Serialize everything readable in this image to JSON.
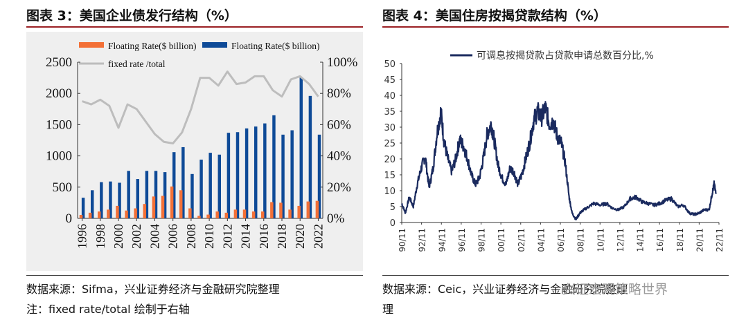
{
  "left": {
    "title": "图表 3：美国企业债发行结构（%）",
    "source_line1": "数据来源：Sifma，兴业证券经济与金融研究院整理",
    "source_line2": "注：fixed rate/total 绘制于右轴"
  },
  "right": {
    "title": "图表 4：美国住房按揭贷款结构（%）",
    "source_line1": "数据来源：Ceic，兴业证券经济与金融研究院整理",
    "source_line2": "理"
  },
  "watermark": {
    "text": "兴证宏观策略世界"
  },
  "colors": {
    "orange": "#f37037",
    "blue": "#0e4a97",
    "gray": "#bdbdbd",
    "navy": "#1a2a5e",
    "accent": "#9a1e23"
  },
  "chart_data": [
    {
      "type": "bar",
      "categories": [
        "1996",
        "1997",
        "1998",
        "1999",
        "2000",
        "2001",
        "2002",
        "2003",
        "2004",
        "2005",
        "2006",
        "2007",
        "2008",
        "2009",
        "2010",
        "2011",
        "2012",
        "2013",
        "2014",
        "2015",
        "2016",
        "2017",
        "2018",
        "2019",
        "2020",
        "2021",
        "2022"
      ],
      "x_tick_labels": [
        "1996",
        "1998",
        "2000",
        "2002",
        "2004",
        "2006",
        "2008",
        "2010",
        "2012",
        "2014",
        "2016",
        "2018",
        "2020",
        "2022"
      ],
      "series": [
        {
          "name": "Floating Rate($ billion)",
          "kind": "bar",
          "color": "#f37037",
          "axis": "left",
          "values": [
            55,
            90,
            110,
            140,
            200,
            125,
            160,
            230,
            350,
            360,
            510,
            450,
            160,
            40,
            60,
            110,
            90,
            140,
            140,
            110,
            110,
            260,
            250,
            140,
            200,
            270,
            280
          ]
        },
        {
          "name": "Floating Rate($ billion)",
          "kind": "bar",
          "color": "#0e4a97",
          "axis": "left",
          "values": [
            330,
            450,
            580,
            590,
            570,
            760,
            630,
            760,
            760,
            740,
            1060,
            1140,
            710,
            940,
            1050,
            1020,
            1370,
            1380,
            1440,
            1470,
            1520,
            1650,
            1340,
            1410,
            2260,
            1960,
            1340
          ]
        },
        {
          "name": "fixed rate /total",
          "kind": "line",
          "color": "#bdbdbd",
          "axis": "right",
          "values": [
            75,
            73,
            76,
            72,
            58,
            73,
            70,
            62,
            54,
            49,
            48,
            55,
            70,
            90,
            90,
            85,
            94,
            86,
            87,
            91,
            91,
            82,
            78,
            89,
            91,
            86,
            78
          ]
        }
      ],
      "y_left": {
        "min": 0,
        "max": 2500,
        "ticks": [
          "0",
          "500",
          "1000",
          "1500",
          "2000",
          "2500"
        ]
      },
      "y_right": {
        "min": 0,
        "max": 100,
        "ticks": [
          "0%",
          "20%",
          "40%",
          "60%",
          "80%",
          "100%"
        ]
      },
      "legend_placement": "top"
    },
    {
      "type": "line",
      "series_name": "可调息按揭贷款占贷款申请总数百分比,%",
      "x_tick_labels": [
        "90/11",
        "92/11",
        "94/11",
        "96/11",
        "98/11",
        "00/11",
        "02/11",
        "04/11",
        "06/11",
        "08/11",
        "10/11",
        "12/11",
        "14/11",
        "16/11",
        "18/11",
        "20/11",
        "22/11"
      ],
      "x_range": [
        1990.83,
        2023.0
      ],
      "y_range": [
        0,
        50
      ],
      "y_ticks": [
        "0",
        "5",
        "10",
        "15",
        "20",
        "25",
        "30",
        "35",
        "40",
        "45",
        "50"
      ],
      "anchors": [
        [
          1990.83,
          6
        ],
        [
          1991.2,
          3
        ],
        [
          1991.6,
          8
        ],
        [
          1992.0,
          5
        ],
        [
          1992.4,
          12
        ],
        [
          1992.8,
          17
        ],
        [
          1993.2,
          21
        ],
        [
          1993.6,
          11
        ],
        [
          1994.0,
          17
        ],
        [
          1994.4,
          28
        ],
        [
          1994.8,
          35
        ],
        [
          1995.1,
          26
        ],
        [
          1995.5,
          20
        ],
        [
          1995.9,
          16
        ],
        [
          1996.3,
          20
        ],
        [
          1996.7,
          26
        ],
        [
          1997.1,
          24
        ],
        [
          1997.5,
          20
        ],
        [
          1997.9,
          15
        ],
        [
          1998.3,
          12
        ],
        [
          1998.7,
          14
        ],
        [
          1999.1,
          20
        ],
        [
          1999.5,
          28
        ],
        [
          1999.9,
          31
        ],
        [
          2000.2,
          26
        ],
        [
          2000.6,
          18
        ],
        [
          2001.0,
          14
        ],
        [
          2001.4,
          12
        ],
        [
          2001.8,
          17
        ],
        [
          2002.2,
          16
        ],
        [
          2002.6,
          12
        ],
        [
          2003.0,
          15
        ],
        [
          2003.4,
          20
        ],
        [
          2003.8,
          25
        ],
        [
          2004.2,
          32
        ],
        [
          2004.6,
          35
        ],
        [
          2005.0,
          33
        ],
        [
          2005.4,
          36
        ],
        [
          2005.8,
          31
        ],
        [
          2006.2,
          32
        ],
        [
          2006.6,
          27
        ],
        [
          2007.0,
          25
        ],
        [
          2007.4,
          19
        ],
        [
          2007.8,
          8
        ],
        [
          2008.1,
          3
        ],
        [
          2008.5,
          1
        ],
        [
          2008.9,
          3
        ],
        [
          2009.3,
          4
        ],
        [
          2009.8,
          5
        ],
        [
          2010.3,
          6
        ],
        [
          2011.0,
          5.5
        ],
        [
          2011.6,
          6
        ],
        [
          2012.2,
          4.5
        ],
        [
          2012.8,
          4
        ],
        [
          2013.4,
          5
        ],
        [
          2014.0,
          7.5
        ],
        [
          2014.6,
          8
        ],
        [
          2015.2,
          6.5
        ],
        [
          2015.8,
          6
        ],
        [
          2016.4,
          5.5
        ],
        [
          2017.0,
          6
        ],
        [
          2017.6,
          7
        ],
        [
          2018.2,
          7.5
        ],
        [
          2018.8,
          5
        ],
        [
          2019.4,
          5.5
        ],
        [
          2020.0,
          3
        ],
        [
          2020.5,
          2.5
        ],
        [
          2021.0,
          3
        ],
        [
          2021.5,
          4
        ],
        [
          2022.0,
          4
        ],
        [
          2022.3,
          9
        ],
        [
          2022.5,
          12
        ],
        [
          2022.7,
          9
        ]
      ]
    }
  ]
}
